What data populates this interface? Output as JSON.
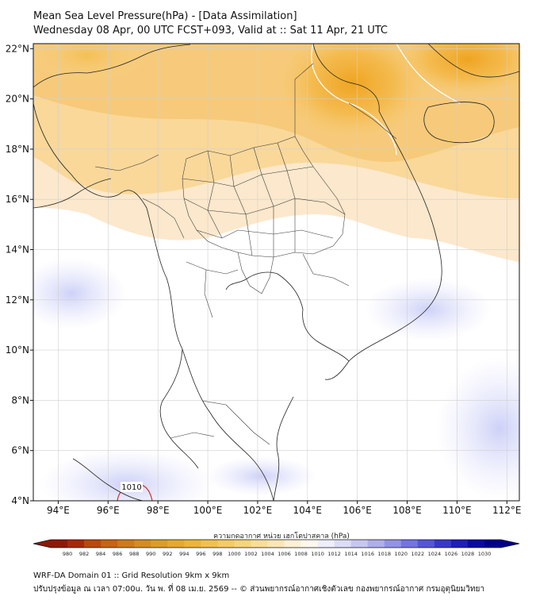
{
  "header": {
    "title": "Mean Sea Level Pressure(hPa) - [Data Assimilation]",
    "subtitle": "Wednesday 08 Apr, 00 UTC FCST+093, Valid at :: Sat 11 Apr, 21 UTC"
  },
  "map": {
    "lon_range": [
      93,
      112.5
    ],
    "lat_range": [
      4,
      22.2
    ],
    "lon_ticks": [
      {
        "value": 94,
        "label": "94°E"
      },
      {
        "value": 96,
        "label": "96°E"
      },
      {
        "value": 98,
        "label": "98°E"
      },
      {
        "value": 100,
        "label": "100°E"
      },
      {
        "value": 102,
        "label": "102°E"
      },
      {
        "value": 104,
        "label": "104°E"
      },
      {
        "value": 106,
        "label": "106°E"
      },
      {
        "value": 108,
        "label": "108°E"
      },
      {
        "value": 110,
        "label": "110°E"
      },
      {
        "value": 112,
        "label": "112°E"
      }
    ],
    "lat_ticks": [
      {
        "value": 4,
        "label": "4°N"
      },
      {
        "value": 6,
        "label": "6°N"
      },
      {
        "value": 8,
        "label": "8°N"
      },
      {
        "value": 10,
        "label": "10°N"
      },
      {
        "value": 12,
        "label": "12°N"
      },
      {
        "value": 14,
        "label": "14°N"
      },
      {
        "value": 16,
        "label": "16°N"
      },
      {
        "value": 18,
        "label": "18°N"
      },
      {
        "value": 20,
        "label": "20°N"
      },
      {
        "value": 22,
        "label": "22°N"
      }
    ],
    "contour_label": "1010",
    "colors": {
      "low": "#f2b730",
      "mid": "#fbe6c2",
      "neutral": "#ffffff",
      "high": "#d6d9fb",
      "land_border": "#222222",
      "grid": "#d0d0d0"
    }
  },
  "colorbar": {
    "title": "ความกดอากาศ หน่วย เฮกโตปาสคาล (hPa)",
    "levels": [
      "980",
      "982",
      "984",
      "986",
      "988",
      "990",
      "992",
      "994",
      "996",
      "998",
      "1000",
      "1002",
      "1004",
      "1006",
      "1008",
      "1010",
      "1012",
      "1014",
      "1016",
      "1018",
      "1020",
      "1022",
      "1024",
      "1026",
      "1028",
      "1030"
    ],
    "colors": [
      "#8a1a05",
      "#a52a05",
      "#b8480c",
      "#c46414",
      "#cc7a1c",
      "#d48c24",
      "#dd9c2a",
      "#e6a830",
      "#edb43a",
      "#f2c050",
      "#f6ca66",
      "#f8d47e",
      "#fadd98",
      "#fbe6b4",
      "#fdf0d4",
      "#fff8ee",
      "#eeeefc",
      "#dcdcf8",
      "#c6c6f4",
      "#aeaeee",
      "#9292e8",
      "#7474e0",
      "#5656d6",
      "#3838c8",
      "#1e1eb8",
      "#0a0aa0",
      "#000088"
    ]
  },
  "footer": {
    "line1": "WRF-DA Domain 01 :: Grid Resolution 9km x 9km",
    "line2": "ปรับปรุงข้อมูล ณ เวลา 07:00u. วัน พ. ที่ 08 เม.ย. 2569 -- © ส่วนพยากรณ์อากาศเชิงตัวเลข กองพยากรณ์อากาศ กรมอุตุนิยมวิทยา"
  }
}
